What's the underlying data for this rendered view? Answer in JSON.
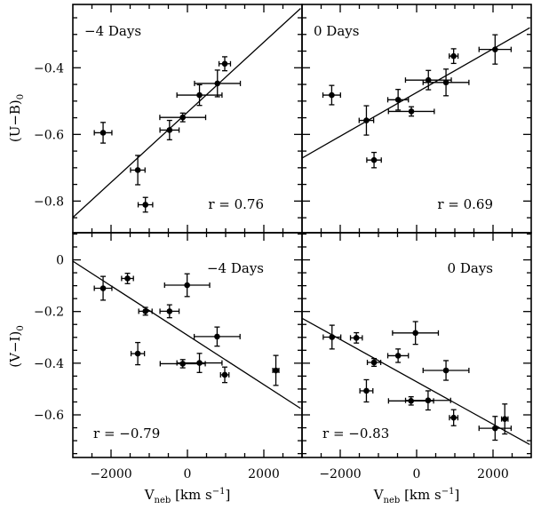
{
  "figure": {
    "ylabel_top": "(U−B)",
    "ylabel_top_sub": "0",
    "ylabel_bottom": "(V−I)",
    "ylabel_bottom_sub": "0",
    "xlabel_main": "V",
    "xlabel_sub": "neb",
    "xlabel_units": " [km s",
    "xlabel_sup": "−1",
    "xlabel_close": "]"
  },
  "chart_data": [
    {
      "type": "scatter",
      "panel": "top-left",
      "label": "−4 Days",
      "label_position": "top-left",
      "r_text": "r = 0.76",
      "r_position": "bottom-right",
      "xlim": [
        -3000,
        3000
      ],
      "ylim": [
        -0.895,
        -0.21
      ],
      "xticks": [],
      "yticks": [
        "-0.4",
        "-0.6",
        "-0.8"
      ],
      "fit": [
        [
          -3000,
          -0.849
        ],
        [
          2962,
          -0.222
        ]
      ],
      "points": [
        {
          "x": -2208,
          "y": -0.595,
          "xerr": 230,
          "yerr": 0.031
        },
        {
          "x": -1300,
          "y": -0.707,
          "xerr": 190,
          "yerr": 0.044
        },
        {
          "x": -1100,
          "y": -0.811,
          "xerr": 190,
          "yerr": 0.022
        },
        {
          "x": -469,
          "y": -0.587,
          "xerr": 250,
          "yerr": 0.029
        },
        {
          "x": -123,
          "y": -0.549,
          "xerr": 600,
          "yerr": 0.013
        },
        {
          "x": 315,
          "y": -0.482,
          "xerr": 590,
          "yerr": 0.031
        },
        {
          "x": 785,
          "y": -0.447,
          "xerr": 600,
          "yerr": 0.04
        },
        {
          "x": 977,
          "y": -0.388,
          "xerr": 150,
          "yerr": 0.021
        }
      ]
    },
    {
      "type": "scatter",
      "panel": "top-right",
      "label": "0 Days",
      "label_position": "top-left",
      "r_text": "r = 0.69",
      "r_position": "bottom-right",
      "xlim": [
        -3000,
        3000
      ],
      "ylim": [
        -0.895,
        -0.21
      ],
      "xticks": [],
      "yticks": [],
      "fit": [
        [
          -3000,
          -0.671
        ],
        [
          2962,
          -0.28
        ]
      ],
      "points": [
        {
          "x": -2223,
          "y": -0.482,
          "xerr": 230,
          "yerr": 0.029
        },
        {
          "x": -1315,
          "y": -0.558,
          "xerr": 190,
          "yerr": 0.044
        },
        {
          "x": -1115,
          "y": -0.677,
          "xerr": 190,
          "yerr": 0.023
        },
        {
          "x": -485,
          "y": -0.496,
          "xerr": 270,
          "yerr": 0.031
        },
        {
          "x": -138,
          "y": -0.531,
          "xerr": 600,
          "yerr": 0.014
        },
        {
          "x": 308,
          "y": -0.437,
          "xerr": 600,
          "yerr": 0.029
        },
        {
          "x": 769,
          "y": -0.444,
          "xerr": 600,
          "yerr": 0.04
        },
        {
          "x": 969,
          "y": -0.365,
          "xerr": 115,
          "yerr": 0.022
        },
        {
          "x": 2054,
          "y": -0.345,
          "xerr": 420,
          "yerr": 0.044
        }
      ]
    },
    {
      "type": "scatter",
      "panel": "bottom-left",
      "label": "−4 Days",
      "label_position": "top-right",
      "r_text": "r = −0.79",
      "r_position": "bottom-left",
      "xlim": [
        -3000,
        3000
      ],
      "ylim": [
        -0.765,
        0.105
      ],
      "xticks": [
        "−2000",
        "0",
        "2000"
      ],
      "yticks": [
        "0",
        "-0.2",
        "-0.4",
        "-0.6"
      ],
      "fit": [
        [
          -3000,
          -0.005
        ],
        [
          2962,
          -0.575
        ]
      ],
      "points": [
        {
          "x": -2208,
          "y": -0.11,
          "xerr": 230,
          "yerr": 0.046
        },
        {
          "x": -1569,
          "y": -0.072,
          "xerr": 155,
          "yerr": 0.02
        },
        {
          "x": -1300,
          "y": -0.363,
          "xerr": 175,
          "yerr": 0.043
        },
        {
          "x": -1100,
          "y": -0.199,
          "xerr": 175,
          "yerr": 0.015
        },
        {
          "x": -469,
          "y": -0.199,
          "xerr": 250,
          "yerr": 0.025
        },
        {
          "x": -8,
          "y": -0.098,
          "xerr": 590,
          "yerr": 0.044
        },
        {
          "x": -123,
          "y": -0.402,
          "xerr": 590,
          "yerr": 0.016
        },
        {
          "x": 315,
          "y": -0.399,
          "xerr": 590,
          "yerr": 0.037
        },
        {
          "x": 777,
          "y": -0.297,
          "xerr": 600,
          "yerr": 0.037
        },
        {
          "x": 977,
          "y": -0.445,
          "xerr": 110,
          "yerr": 0.03
        },
        {
          "x": 2315,
          "y": -0.428,
          "xerr": 80,
          "yerr": 0.058
        }
      ]
    },
    {
      "type": "scatter",
      "panel": "bottom-right",
      "label": "0 Days",
      "label_position": "top-right",
      "r_text": "r = −0.83",
      "r_position": "bottom-left",
      "xlim": [
        -3000,
        3000
      ],
      "ylim": [
        -0.765,
        0.105
      ],
      "xticks": [
        "−2000",
        "0",
        "2000"
      ],
      "yticks": [],
      "fit": [
        [
          -3000,
          -0.226
        ],
        [
          2962,
          -0.715
        ]
      ],
      "points": [
        {
          "x": -2215,
          "y": -0.299,
          "xerr": 230,
          "yerr": 0.046
        },
        {
          "x": -1577,
          "y": -0.302,
          "xerr": 155,
          "yerr": 0.02
        },
        {
          "x": -1315,
          "y": -0.507,
          "xerr": 170,
          "yerr": 0.043
        },
        {
          "x": -1115,
          "y": -0.397,
          "xerr": 175,
          "yerr": 0.015
        },
        {
          "x": -485,
          "y": -0.371,
          "xerr": 270,
          "yerr": 0.026
        },
        {
          "x": -31,
          "y": -0.283,
          "xerr": 600,
          "yerr": 0.044
        },
        {
          "x": -146,
          "y": -0.546,
          "xerr": 590,
          "yerr": 0.016
        },
        {
          "x": 300,
          "y": -0.544,
          "xerr": 590,
          "yerr": 0.037
        },
        {
          "x": 769,
          "y": -0.428,
          "xerr": 600,
          "yerr": 0.038
        },
        {
          "x": 969,
          "y": -0.611,
          "xerr": 110,
          "yerr": 0.031
        },
        {
          "x": 2054,
          "y": -0.652,
          "xerr": 420,
          "yerr": 0.046
        },
        {
          "x": 2308,
          "y": -0.616,
          "xerr": 85,
          "yerr": 0.058
        }
      ]
    }
  ]
}
